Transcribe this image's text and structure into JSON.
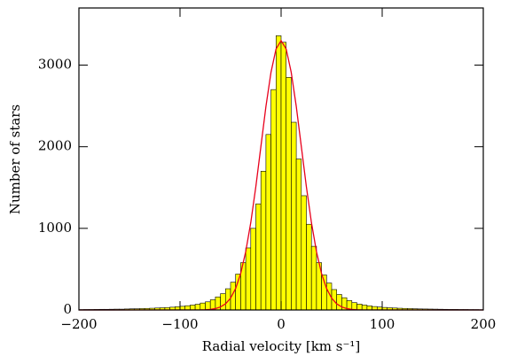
{
  "chart_data": {
    "type": "histogram",
    "xlabel": "Radial velocity [km s⁻¹]",
    "ylabel": "Number of stars",
    "bins": [
      -200,
      -195,
      -190,
      -185,
      -180,
      -175,
      -170,
      -165,
      -160,
      -155,
      -150,
      -145,
      -140,
      -135,
      -130,
      -125,
      -120,
      -115,
      -110,
      -105,
      -100,
      -95,
      -90,
      -85,
      -80,
      -75,
      -70,
      -65,
      -60,
      -55,
      -50,
      -45,
      -40,
      -35,
      -30,
      -25,
      -20,
      -15,
      -10,
      -5,
      0,
      5,
      10,
      15,
      20,
      25,
      30,
      35,
      40,
      45,
      50,
      55,
      60,
      65,
      70,
      75,
      80,
      85,
      90,
      95,
      100,
      105,
      110,
      115,
      120,
      125,
      130,
      135,
      140,
      145,
      150,
      155,
      160,
      165,
      170,
      175,
      180,
      185,
      190,
      195,
      200
    ],
    "values": [
      5,
      6,
      6,
      7,
      8,
      8,
      9,
      10,
      10,
      12,
      14,
      15,
      17,
      19,
      21,
      24,
      27,
      30,
      34,
      40,
      45,
      52,
      60,
      70,
      85,
      100,
      125,
      160,
      200,
      260,
      340,
      440,
      580,
      760,
      1000,
      1300,
      1700,
      2150,
      2700,
      3360,
      3280,
      2850,
      2300,
      1850,
      1400,
      1050,
      780,
      580,
      430,
      330,
      250,
      190,
      150,
      115,
      90,
      72,
      60,
      50,
      42,
      36,
      31,
      27,
      24,
      21,
      19,
      17,
      15,
      13,
      12,
      11,
      10,
      9,
      8,
      7,
      7,
      6,
      6,
      5,
      5,
      4
    ],
    "color": "#ffff00",
    "edgecolor": "#000000",
    "fit": {
      "color": "#e8001c",
      "x": [
        -200,
        -80,
        -75,
        -70,
        -65,
        -60,
        -55,
        -50,
        -45,
        -40,
        -35,
        -30,
        -25,
        -20,
        -15,
        -10,
        -5,
        0,
        5,
        10,
        15,
        20,
        25,
        30,
        35,
        40,
        45,
        50,
        55,
        60,
        65,
        70,
        75,
        80,
        200
      ],
      "values": [
        0,
        1,
        3,
        7,
        17,
        37,
        75,
        145,
        262,
        447,
        715,
        1071,
        1510,
        2002,
        2494,
        2912,
        3198,
        3300,
        3198,
        2912,
        2494,
        2002,
        1510,
        1071,
        715,
        447,
        262,
        145,
        75,
        37,
        17,
        7,
        3,
        1,
        0
      ]
    },
    "xlim": [
      -200,
      200
    ],
    "xticks": [
      {
        "value": -200,
        "label": "−200"
      },
      {
        "value": -100,
        "label": "−100"
      },
      0,
      100,
      200
    ],
    "ylim": [
      0,
      3700
    ],
    "yticks": [
      0,
      1000,
      2000,
      3000
    ]
  }
}
